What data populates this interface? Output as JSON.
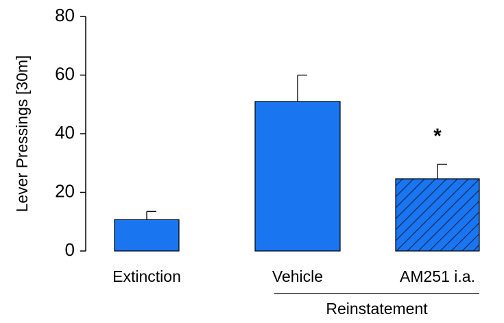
{
  "chart_data": {
    "type": "bar",
    "ylabel": "Lever Pressings [30m]",
    "categories": [
      "Extinction",
      "Vehicle",
      "AM251 i.a."
    ],
    "values": [
      10.7,
      51,
      24.6
    ],
    "errors": [
      2.8,
      9,
      5
    ],
    "color": "#1a75f0",
    "hatched": [
      false,
      false,
      true
    ],
    "ylim": [
      0,
      80
    ],
    "yticks": [
      0,
      20,
      40,
      60,
      80
    ],
    "annotations": [
      {
        "text": "*",
        "index": 2
      }
    ],
    "groups": [
      {
        "label": "Reinstatement",
        "categories": [
          1,
          2
        ]
      }
    ]
  }
}
